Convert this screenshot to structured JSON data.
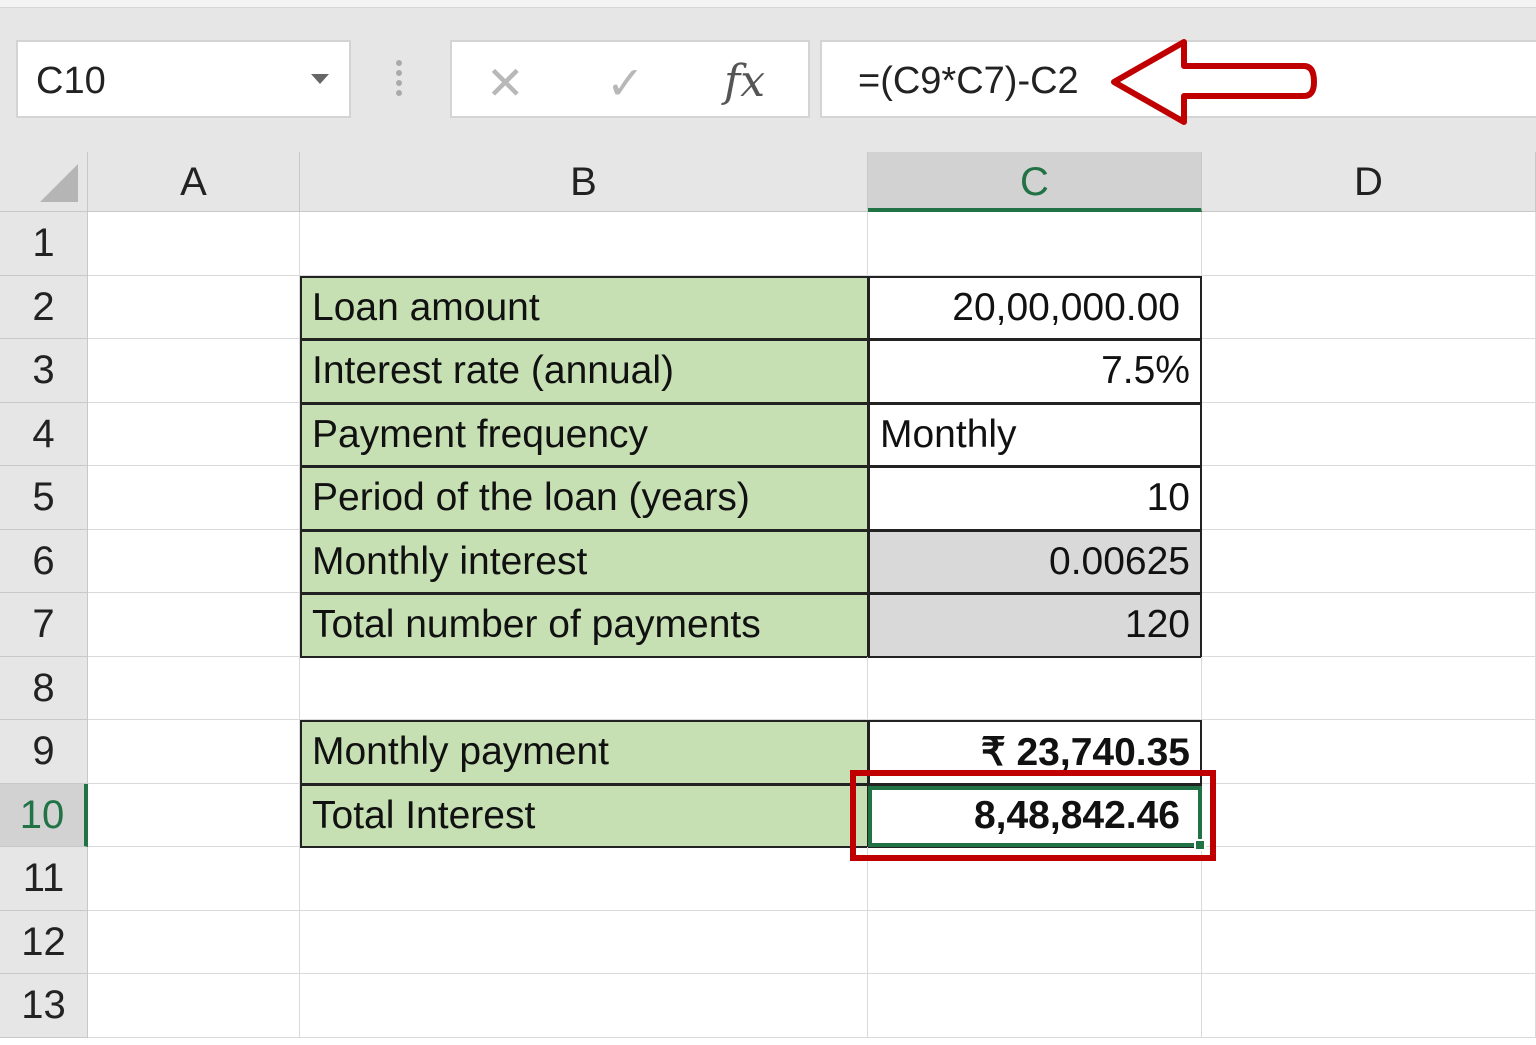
{
  "name_box": "C10",
  "formula_bar": {
    "cancel_icon": "✕",
    "enter_icon": "✓",
    "fx_label": "fx",
    "formula": "=(C9*C7)-C2"
  },
  "columns": [
    "A",
    "B",
    "C",
    "D"
  ],
  "selected_cell": "C10",
  "rows": [
    {
      "n": "1",
      "b": "",
      "c": ""
    },
    {
      "n": "2",
      "b": "Loan amount",
      "c": "20,00,000.00"
    },
    {
      "n": "3",
      "b": "Interest rate (annual)",
      "c": "7.5%"
    },
    {
      "n": "4",
      "b": "Payment frequency",
      "c": "Monthly"
    },
    {
      "n": "5",
      "b": "Period of the loan (years)",
      "c": "10"
    },
    {
      "n": "6",
      "b": "Monthly interest",
      "c": "0.00625"
    },
    {
      "n": "7",
      "b": "Total number of payments",
      "c": "120"
    },
    {
      "n": "8",
      "b": "",
      "c": ""
    },
    {
      "n": "9",
      "b": "Monthly payment",
      "c": "₹ 23,740.35"
    },
    {
      "n": "10",
      "b": "Total Interest",
      "c": "8,48,842.46"
    },
    {
      "n": "11",
      "b": "",
      "c": ""
    },
    {
      "n": "12",
      "b": "",
      "c": ""
    },
    {
      "n": "13",
      "b": "",
      "c": ""
    }
  ],
  "colors": {
    "label_fill": "#c6e0b4",
    "calc_fill": "#d9d9d9",
    "selection": "#217346",
    "annotation": "#c00000"
  }
}
